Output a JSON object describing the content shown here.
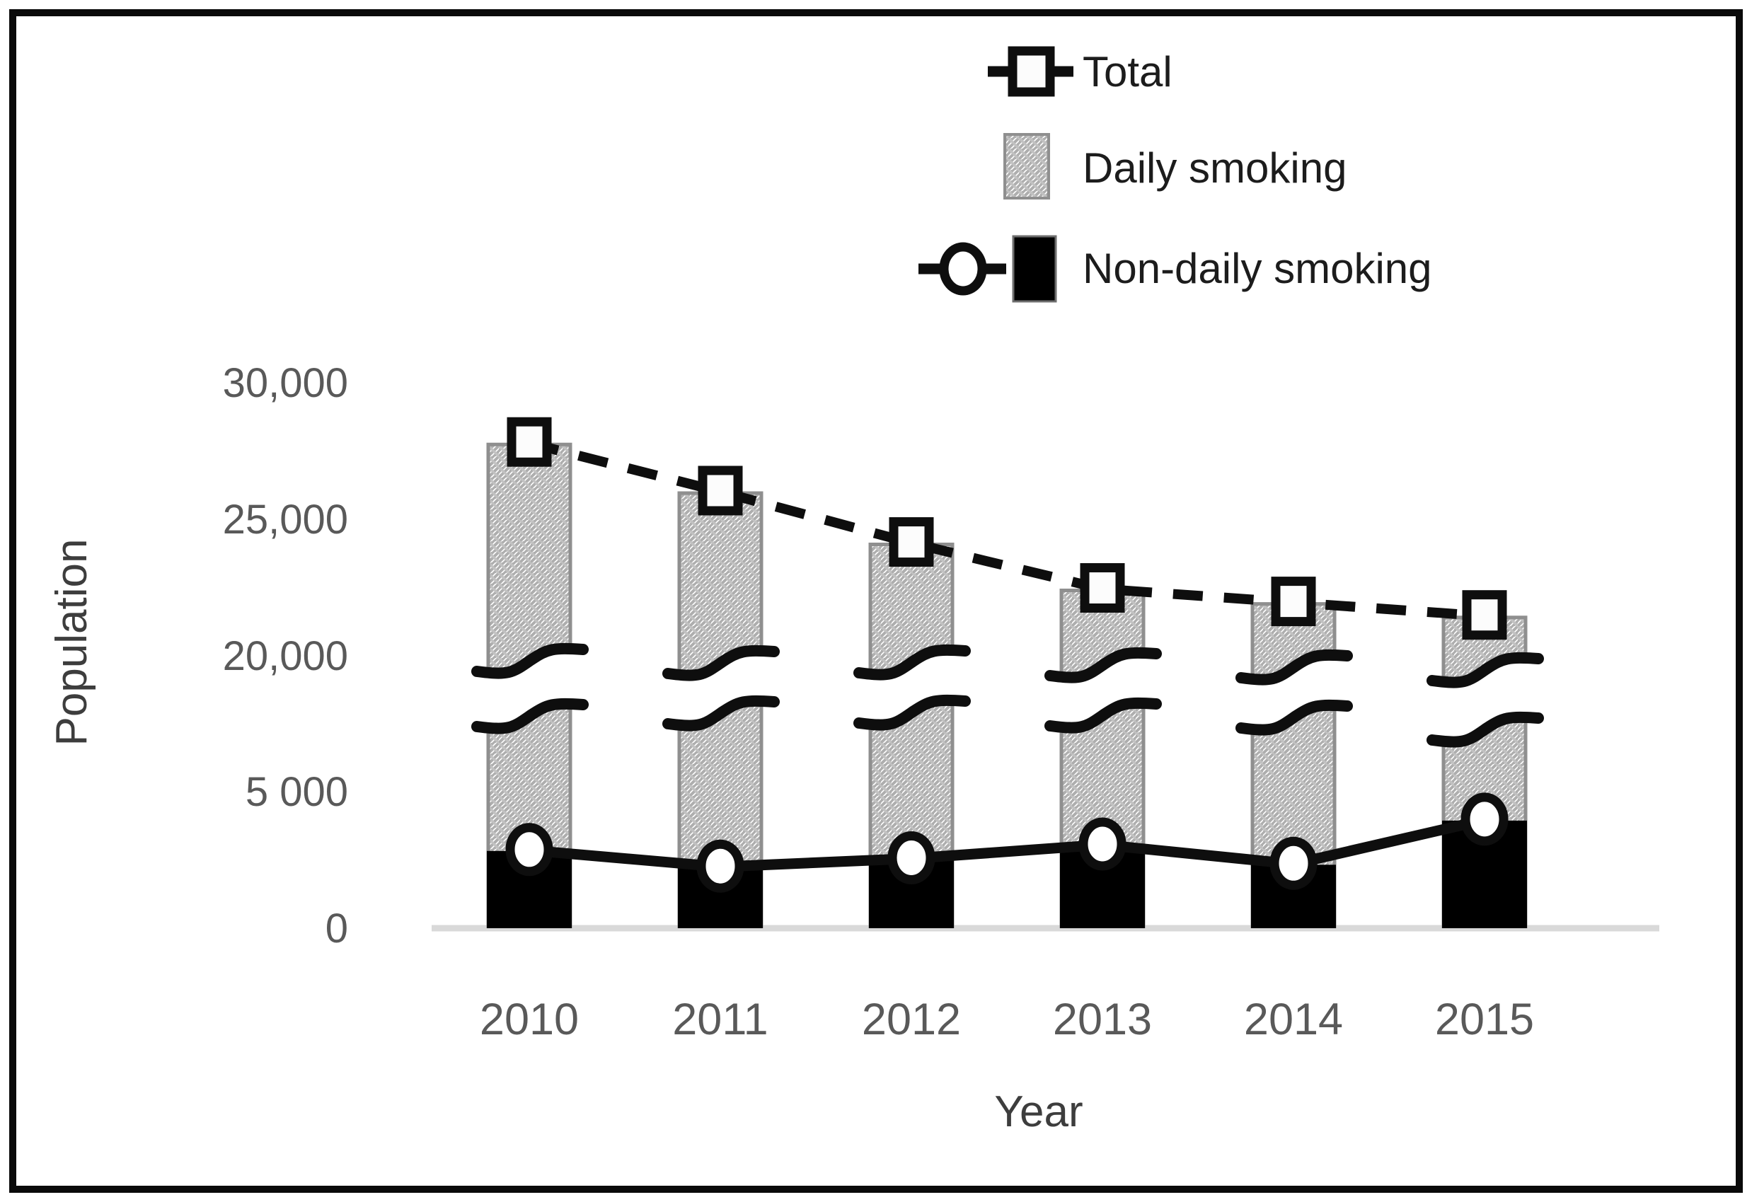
{
  "chart_data": {
    "type": "bar",
    "subtype": "stacked bars with broken y-axis, dashed total line (square markers) and solid non-daily line (circle markers)",
    "title": "",
    "categories": [
      "2010",
      "2011",
      "2012",
      "2013",
      "2014",
      "2015"
    ],
    "series": [
      {
        "name": "Total",
        "type": "line",
        "line_style": "dashed",
        "marker": "open-square",
        "values": [
          27900,
          26100,
          24200,
          22500,
          22000,
          21500
        ]
      },
      {
        "name": "Daily smoking",
        "type": "bar",
        "fill": "hatched",
        "values": [
          25100,
          23900,
          21700,
          19500,
          19700,
          17600
        ]
      },
      {
        "name": "Non-daily smoking",
        "type": "bar+line",
        "fill": "solid-black",
        "line_style": "solid",
        "marker": "open-circle",
        "values": [
          2800,
          2200,
          2500,
          3000,
          2300,
          3900
        ]
      }
    ],
    "stacked": true,
    "xlabel": "Year",
    "ylabel": "Population",
    "y_tick_labels": [
      "0",
      "5 000",
      "20,000",
      "25,000",
      "30,000"
    ],
    "y_tick_values": [
      0,
      5000,
      20000,
      25000,
      30000
    ],
    "y_axis_break": {
      "between": [
        7500,
        19700
      ]
    },
    "ylim": [
      0,
      31500
    ],
    "grid": false,
    "legend_position": "top-right"
  },
  "colors": {
    "background": "#ffffff",
    "border": "#0a0a0a",
    "bar_black": "#000000",
    "bar_outline": "#8f8f8f",
    "hatch_line": "#aeaeae",
    "line_black": "#0e0e0e",
    "marker_fill": "#fcfcfc",
    "baseline": "#d9d9d9",
    "tick_text": "#595959",
    "axis_title_text": "#3d3d3d",
    "legend_text": "#1c1c1c"
  }
}
